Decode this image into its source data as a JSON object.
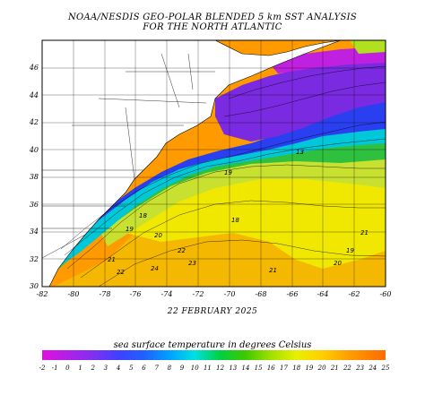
{
  "title_line1": "NOAA/NESDIS GEO-POLAR BLENDED 5 km SST ANALYSIS",
  "title_line2": "FOR THE NORTH ATLANTIC",
  "date": "22 FEBRUARY 2025",
  "colorbar_title": "sea surface temperature in degrees Celsius",
  "lat_labels": [
    "30",
    "32",
    "34",
    "36",
    "38",
    "40",
    "42",
    "44",
    "46"
  ],
  "lon_labels": [
    "-82",
    "-80",
    "-78",
    "-76",
    "-74",
    "-72",
    "-70",
    "-68",
    "-66",
    "-64",
    "-62",
    "-60"
  ],
  "colorbar_labels": [
    "-2",
    "-1",
    "0",
    "1",
    "2",
    "3",
    "4",
    "5",
    "6",
    "7",
    "8",
    "9",
    "10",
    "11",
    "12",
    "13",
    "14",
    "15",
    "16",
    "17",
    "18",
    "19",
    "20",
    "21",
    "22",
    "23",
    "24",
    "25"
  ],
  "contour_labels": [
    "18",
    "19",
    "20",
    "21",
    "22",
    "23",
    "24",
    "22",
    "21",
    "20",
    "19",
    "18",
    "13",
    "21",
    "19"
  ],
  "colors": {
    "cold": "#c020e0",
    "purple": "#8b2be2",
    "blue": "#3040ff",
    "cyan": "#00d8e0",
    "green": "#30c030",
    "lime": "#b8e830",
    "yellow": "#f0f000",
    "orange": "#ff9000",
    "land": "#ffffff"
  }
}
